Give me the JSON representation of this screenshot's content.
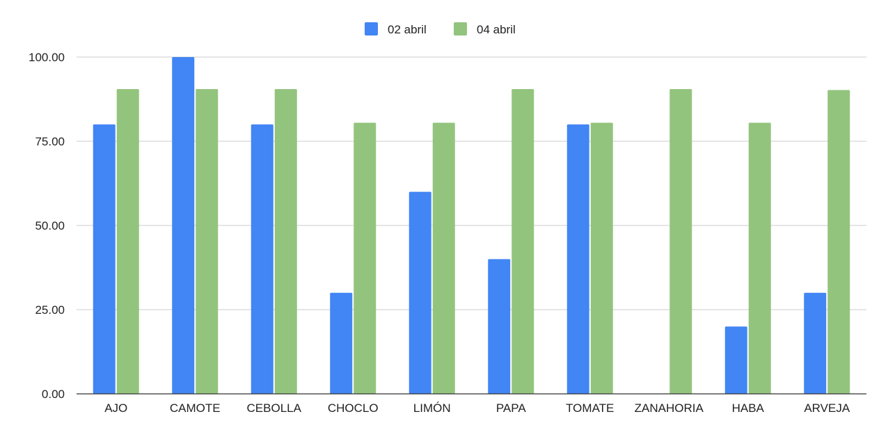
{
  "chart_data": {
    "type": "bar",
    "title": "",
    "xlabel": "",
    "ylabel": "",
    "categories": [
      "AJO",
      "CAMOTE",
      "CEBOLLA",
      "CHOCLO",
      "LIMÓN",
      "PAPA",
      "TOMATE",
      "ZANAHORIA",
      "HABA",
      "ARVEJA"
    ],
    "series": [
      {
        "name": "02 abril",
        "color": "#4285f4",
        "values": [
          80,
          100,
          80,
          30,
          60,
          40,
          80,
          0,
          20,
          30
        ]
      },
      {
        "name": "04 abril",
        "color": "#93c47d",
        "values": [
          90.5,
          90.5,
          90.5,
          80.5,
          80.5,
          90.5,
          80.5,
          90.5,
          80.5,
          90.2
        ]
      }
    ],
    "ylim": [
      0,
      100
    ],
    "yticks": [
      "0.00",
      "25.00",
      "50.00",
      "75.00",
      "100.00"
    ],
    "grid": true,
    "legend_position": "top-center"
  }
}
